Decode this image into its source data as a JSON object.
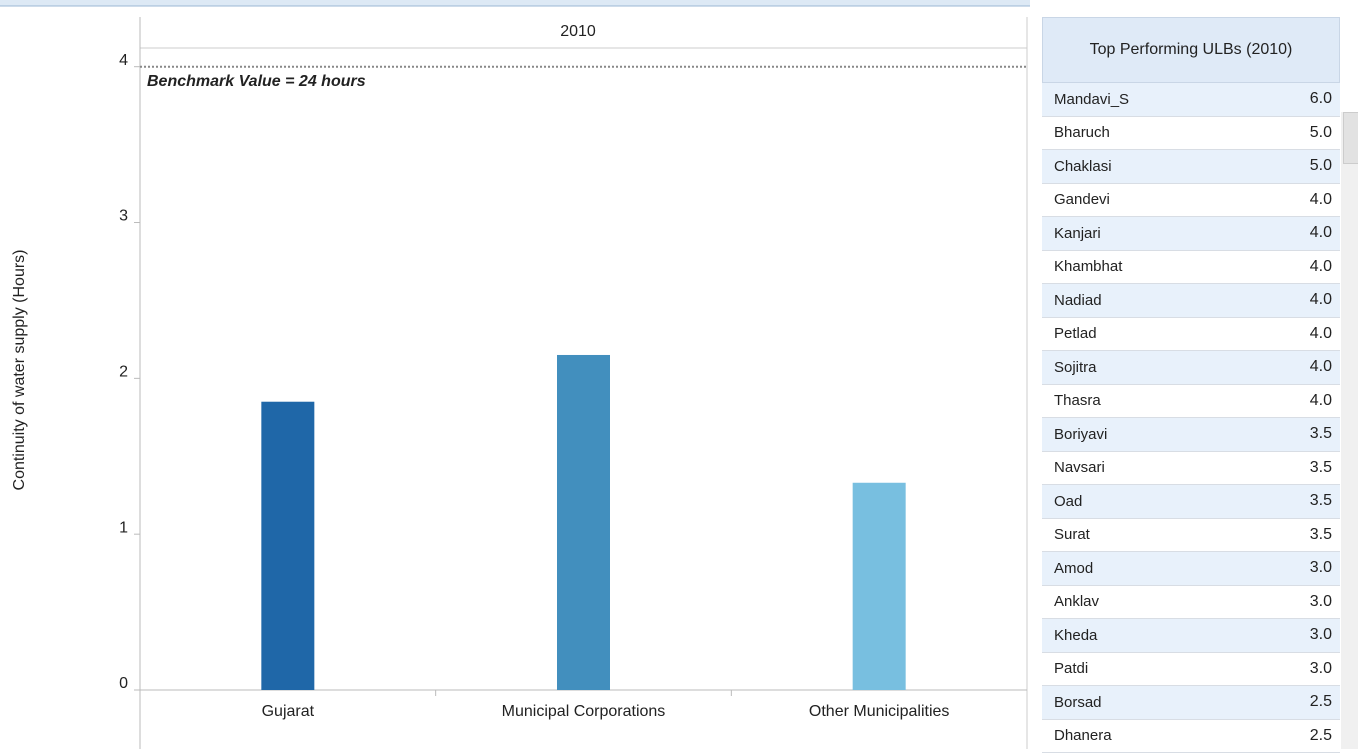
{
  "chart_data": {
    "type": "bar",
    "panel_header": "2010",
    "y_label": "Continuity of water supply (Hours)",
    "categories": [
      "Gujarat",
      "Municipal Corporations",
      "Other Municipalities"
    ],
    "values": [
      1.85,
      2.15,
      1.33
    ],
    "colors": [
      "#1f67a8",
      "#428fbe",
      "#78bfe0"
    ],
    "ylim": [
      0,
      4.12
    ],
    "yticks": [
      0,
      1,
      2,
      3,
      4
    ],
    "reference_line": {
      "value": 4,
      "label": "Benchmark Value = 24 hours"
    }
  },
  "table": {
    "title": "Top Performing ULBs (2010)",
    "rows": [
      [
        "Mandavi_S",
        "6.0"
      ],
      [
        "Bharuch",
        "5.0"
      ],
      [
        "Chaklasi",
        "5.0"
      ],
      [
        "Gandevi",
        "4.0"
      ],
      [
        "Kanjari",
        "4.0"
      ],
      [
        "Khambhat",
        "4.0"
      ],
      [
        "Nadiad",
        "4.0"
      ],
      [
        "Petlad",
        "4.0"
      ],
      [
        "Sojitra",
        "4.0"
      ],
      [
        "Thasra",
        "4.0"
      ],
      [
        "Boriyavi",
        "3.5"
      ],
      [
        "Navsari",
        "3.5"
      ],
      [
        "Oad",
        "3.5"
      ],
      [
        "Surat",
        "3.5"
      ],
      [
        "Amod",
        "3.0"
      ],
      [
        "Anklav",
        "3.0"
      ],
      [
        "Kheda",
        "3.0"
      ],
      [
        "Patdi",
        "3.0"
      ],
      [
        "Borsad",
        "2.5"
      ],
      [
        "Dhanera",
        "2.5"
      ]
    ]
  }
}
